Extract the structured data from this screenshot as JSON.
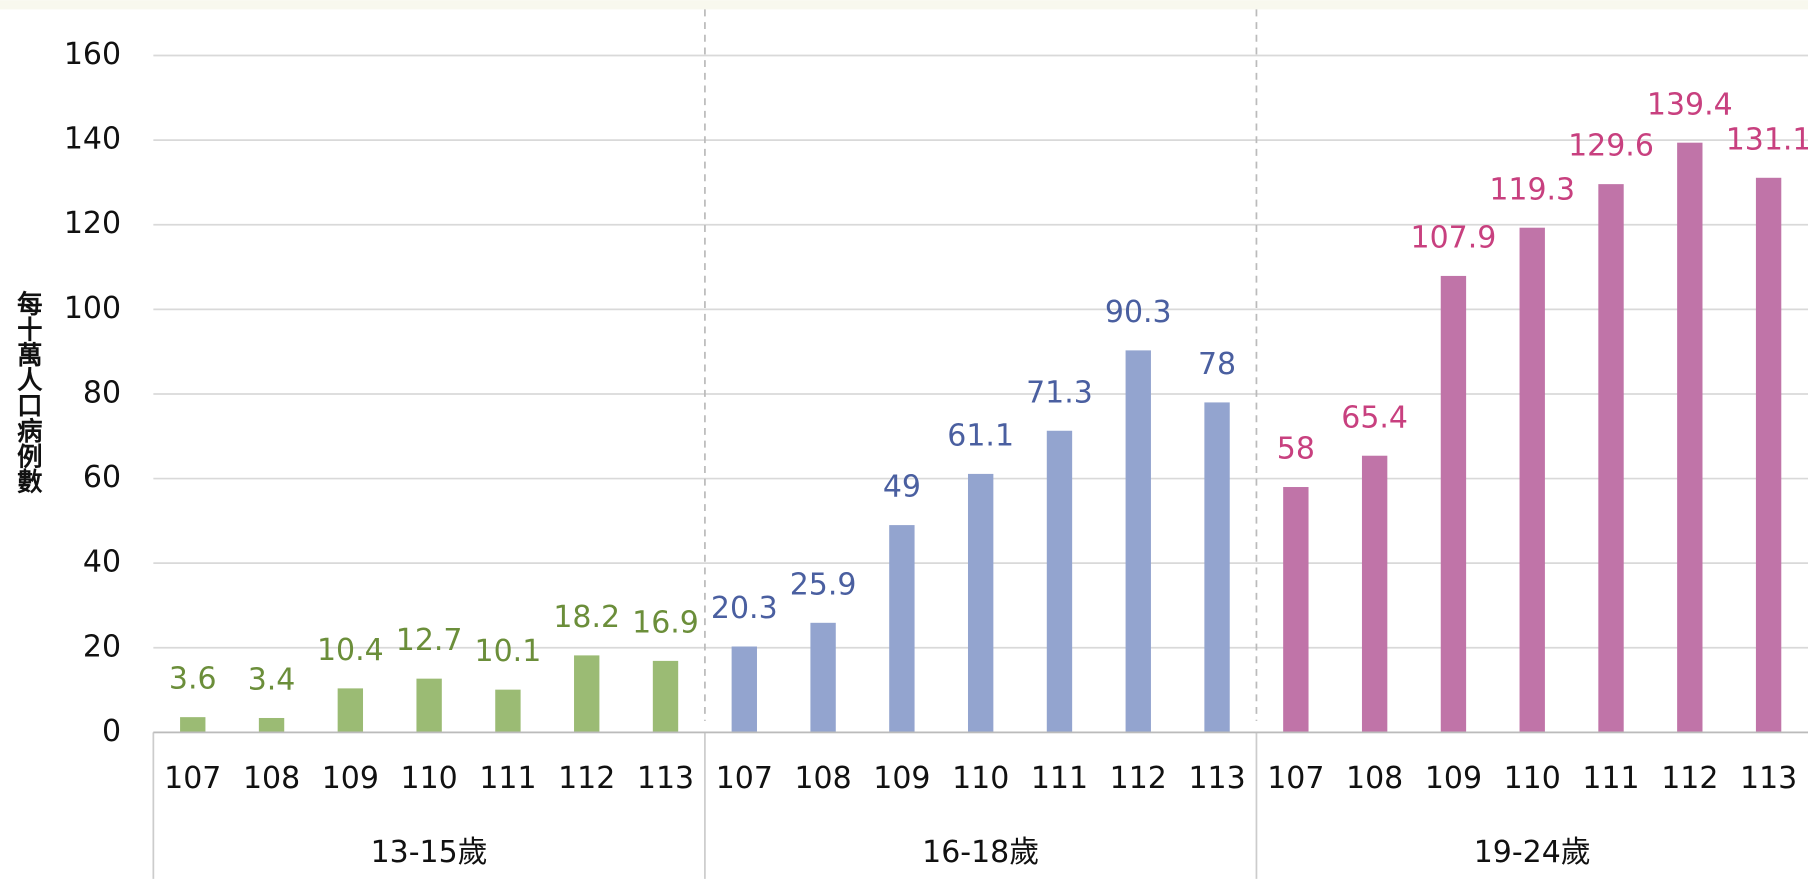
{
  "chart_data": {
    "type": "bar",
    "y_label": "每十萬人口病例數",
    "categories": [
      "107",
      "108",
      "109",
      "110",
      "111",
      "112",
      "113"
    ],
    "series": [
      {
        "name": "13-15歲",
        "color": "#9bbb74",
        "label_color": "#6b8e3a",
        "values": [
          3.6,
          3.4,
          10.4,
          12.7,
          10.1,
          18.2,
          16.9
        ]
      },
      {
        "name": "16-18歲",
        "color": "#93a4cf",
        "label_color": "#4a5fa0",
        "values": [
          20.3,
          25.9,
          49,
          61.1,
          71.3,
          90.3,
          78
        ]
      },
      {
        "name": "19-24歲",
        "color": "#c074a8",
        "label_color": "#c8407f",
        "values": [
          58,
          65.4,
          107.9,
          119.3,
          129.6,
          139.4,
          131.1
        ]
      }
    ],
    "ylim": [
      0,
      160
    ],
    "yticks": [
      0,
      20,
      40,
      60,
      80,
      100,
      120,
      140,
      160
    ],
    "grid": true
  }
}
